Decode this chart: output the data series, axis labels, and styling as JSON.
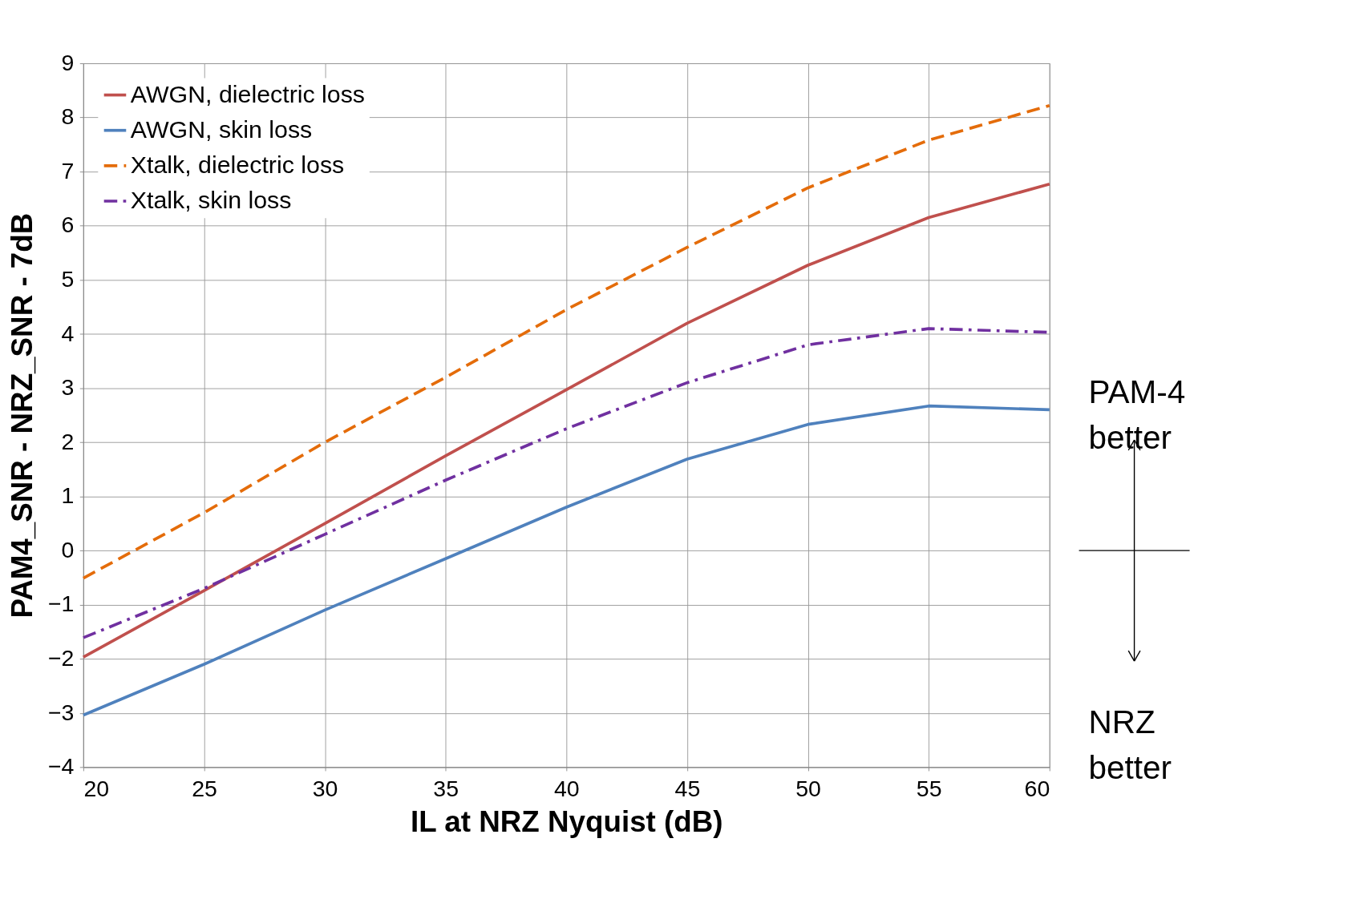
{
  "chart_data": {
    "type": "line",
    "xlabel": "IL at NRZ Nyquist (dB)",
    "ylabel": "PAM4_SNR - NRZ_SNR - 7dB",
    "x": [
      20,
      25,
      30,
      35,
      40,
      45,
      50,
      55,
      60
    ],
    "series": [
      {
        "name": "AWGN, dielectric loss",
        "color": "#c0504d",
        "line_style": "solid",
        "values": [
          -1.97,
          -0.74,
          0.5,
          1.75,
          2.97,
          4.2,
          5.27,
          6.15,
          6.77
        ]
      },
      {
        "name": "AWGN, skin loss",
        "color": "#4f81bd",
        "line_style": "solid",
        "values": [
          -3.04,
          -2.1,
          -1.1,
          -0.15,
          0.8,
          1.69,
          2.33,
          2.67,
          2.6
        ]
      },
      {
        "name": "Xtalk, dielectric loss",
        "color": "#e46c0a",
        "line_style": "dashed",
        "values": [
          -0.51,
          0.7,
          2.0,
          3.2,
          4.45,
          5.6,
          6.7,
          7.58,
          8.22
        ]
      },
      {
        "name": "Xtalk, skin loss",
        "color": "#7030a0",
        "line_style": "dashdot",
        "values": [
          -1.61,
          -0.7,
          0.3,
          1.3,
          2.25,
          3.1,
          3.8,
          4.1,
          4.03
        ]
      }
    ],
    "xlim": [
      20,
      60
    ],
    "xticks": [
      20,
      25,
      30,
      35,
      40,
      45,
      50,
      55,
      60
    ],
    "ylim": [
      -4,
      9
    ],
    "yticks": [
      -4,
      -3,
      -2,
      -1,
      0,
      1,
      2,
      3,
      4,
      5,
      6,
      7,
      8,
      9
    ],
    "grid": true,
    "legend": "top left",
    "marker": "none",
    "annotations": [
      "PAM-4 better",
      "NRZ better"
    ]
  }
}
